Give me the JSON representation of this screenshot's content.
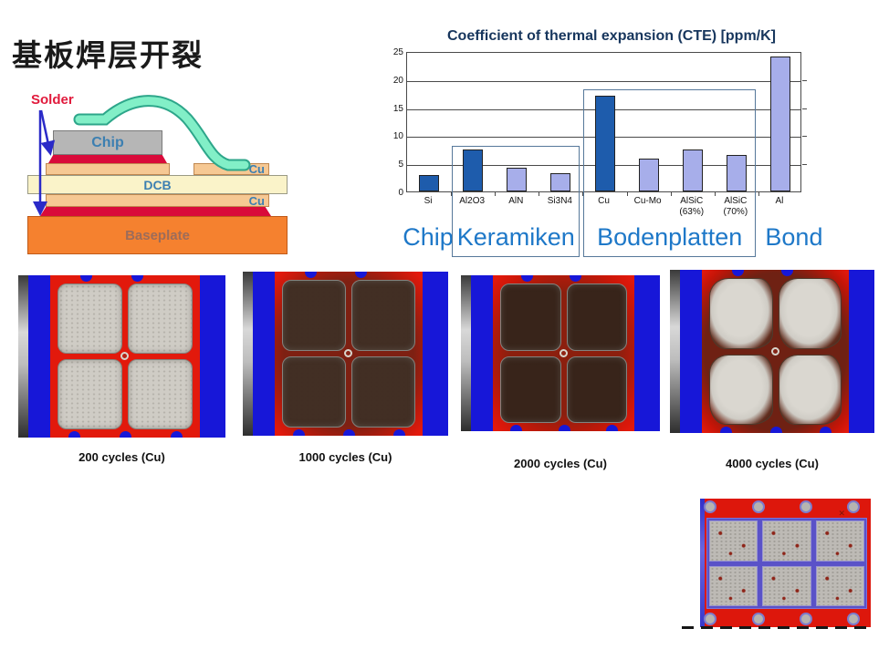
{
  "title": "基板焊层开裂",
  "diagram": {
    "solder_label": "Solder",
    "layers": {
      "chip": "Chip",
      "cu_top": "Cu",
      "dcb": "DCB",
      "cu_bottom": "Cu",
      "baseplate": "Baseplate"
    },
    "colors": {
      "solder_red": "#d90a3a",
      "copper": "#f6c893",
      "dcb_cream": "#faf3c9",
      "baseplate_orange": "#f5812f",
      "chip_gray": "#b6b6b6",
      "bond_wire_fill": "#82efc7",
      "bond_wire_edge": "#2da68a",
      "arrow_blue": "#2a2ac8",
      "label_blue": "#3c7fb1"
    }
  },
  "chart_data": {
    "type": "bar",
    "title": "Coefficient of thermal expansion (CTE) [ppm/K]",
    "categories": [
      "Si",
      "Al2O3",
      "AlN",
      "Si3N4",
      "Cu",
      "Cu-Mo",
      "AlSiC",
      "AlSiC",
      "Al"
    ],
    "sub_labels": [
      "",
      "",
      "",
      "",
      "",
      "",
      "(63%)",
      "(70%)",
      ""
    ],
    "values": [
      3,
      7.5,
      4.3,
      3.2,
      17,
      5.8,
      7.4,
      6.5,
      24
    ],
    "bar_palette": [
      "dark",
      "dark",
      "light",
      "light",
      "dark",
      "light",
      "light",
      "light",
      "light"
    ],
    "colors": {
      "dark": "#1e5cac",
      "light": "#a7aeea"
    },
    "ylim": [
      0,
      25
    ],
    "yticks": [
      0,
      5,
      10,
      15,
      20,
      25
    ],
    "grid": true,
    "legend_position": "none",
    "groups": [
      {
        "label": "Chip",
        "categories": [
          "Si"
        ],
        "boxed": false
      },
      {
        "label": "Keramiken",
        "categories": [
          "Al2O3",
          "AlN",
          "Si3N4"
        ],
        "boxed": true,
        "box_top_value": 8.3
      },
      {
        "label": "Bodenplatten",
        "categories": [
          "Cu",
          "Cu-Mo",
          "AlSiC (63%)",
          "AlSiC (70%)"
        ],
        "boxed": true,
        "box_top_value": 18.3
      },
      {
        "label": "Bond",
        "categories": [
          "Al"
        ],
        "boxed": false
      }
    ]
  },
  "photos": [
    {
      "caption": "200 cycles (Cu)",
      "cycles": 200,
      "degradation_level": 0
    },
    {
      "caption": "1000 cycles (Cu)",
      "cycles": 1000,
      "degradation_level": 1
    },
    {
      "caption": "2000 cycles (Cu)",
      "cycles": 2000,
      "degradation_level": 2
    },
    {
      "caption": "4000 cycles (Cu)",
      "cycles": 4000,
      "degradation_level": 3
    }
  ],
  "bottom_photo": {
    "mark": "✕"
  }
}
